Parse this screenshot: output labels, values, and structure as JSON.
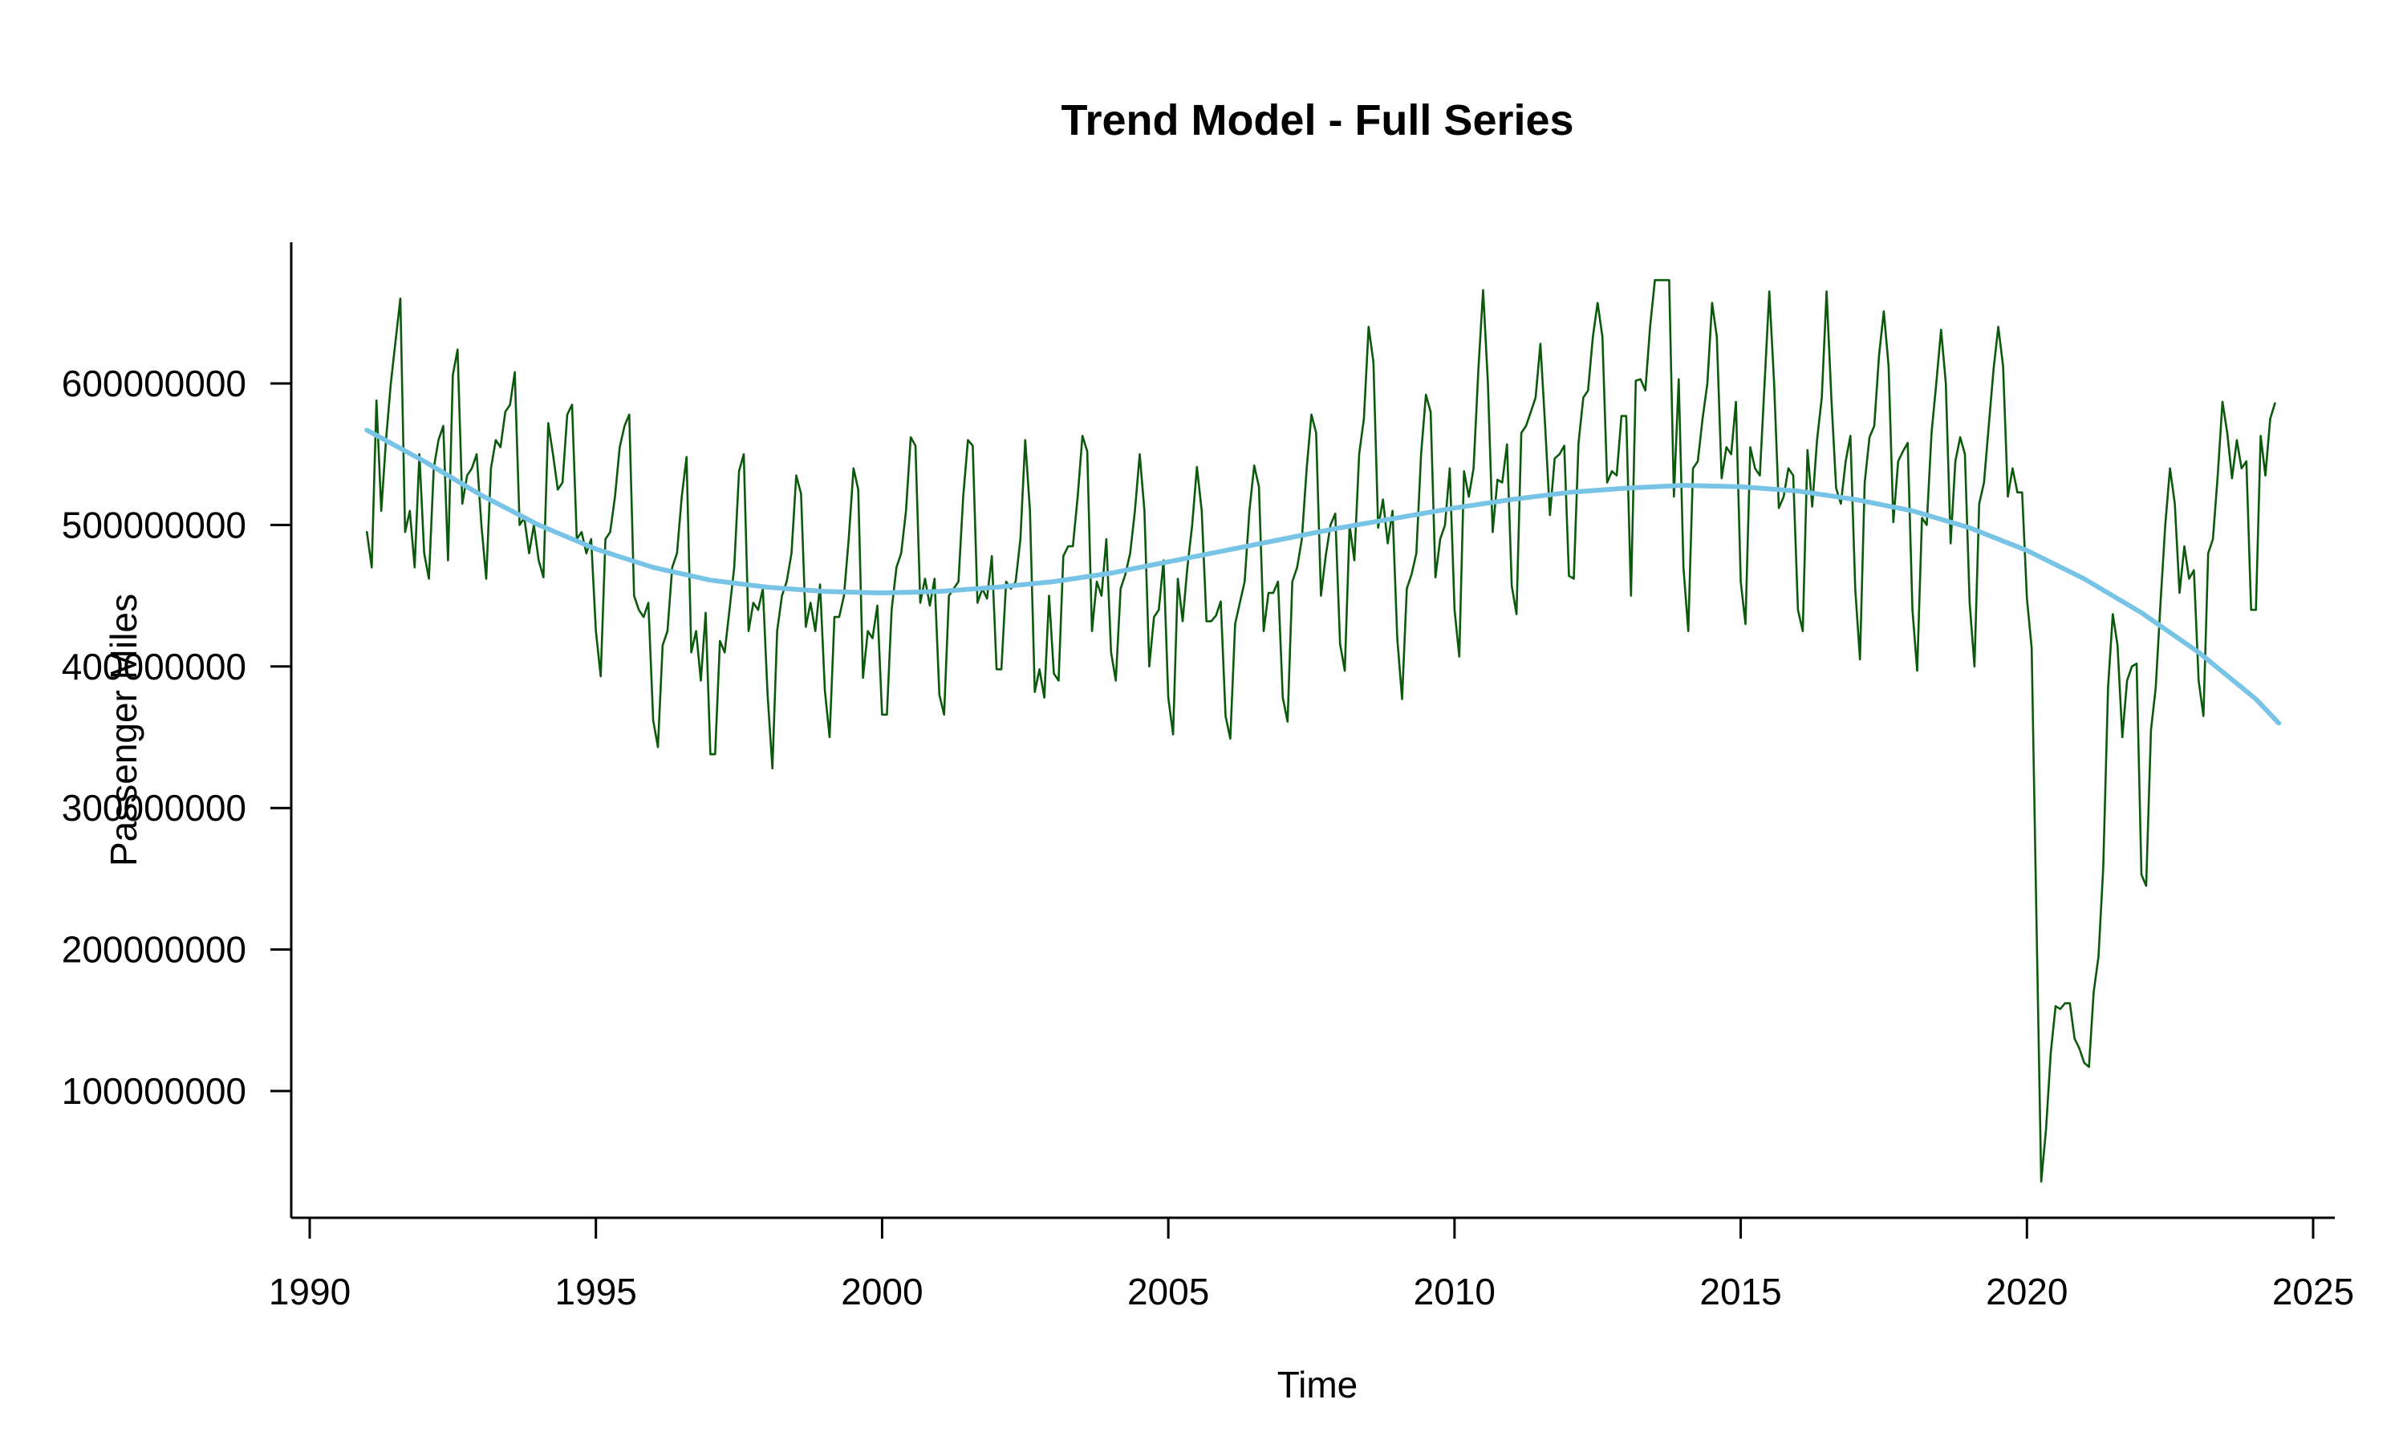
{
  "chart_data": {
    "type": "line",
    "title": "Trend Model - Full Series",
    "xlabel": "Time",
    "ylabel": "Passenger Miles",
    "xlim": [
      1990,
      2025
    ],
    "ylim": [
      35000000,
      675000000
    ],
    "x_ticks": [
      1990,
      1995,
      2000,
      2005,
      2010,
      2015,
      2020,
      2025
    ],
    "y_ticks": [
      100000000,
      200000000,
      300000000,
      400000000,
      500000000,
      600000000
    ],
    "grid": false,
    "legend": "none",
    "series": [
      {
        "role": "observed",
        "color": "#0b5a0b",
        "x_start": 1991.0,
        "x_step": 0.0833333,
        "values": [
          495000000,
          470000000,
          588000000,
          510000000,
          560000000,
          600000000,
          630000000,
          660000000,
          495000000,
          510000000,
          470000000,
          550000000,
          480000000,
          462000000,
          540000000,
          560000000,
          570000000,
          475000000,
          606000000,
          624000000,
          515000000,
          535000000,
          540000000,
          550000000,
          500000000,
          462000000,
          540000000,
          560000000,
          555000000,
          580000000,
          585000000,
          608000000,
          500000000,
          505000000,
          480000000,
          500000000,
          475000000,
          463000000,
          572000000,
          550000000,
          525000000,
          530000000,
          578000000,
          585000000,
          490000000,
          495000000,
          480000000,
          490000000,
          425000000,
          393000000,
          490000000,
          495000000,
          520000000,
          555000000,
          570000000,
          578000000,
          450000000,
          440000000,
          435000000,
          445000000,
          362000000,
          343000000,
          415000000,
          425000000,
          470000000,
          480000000,
          520000000,
          548000000,
          410000000,
          425000000,
          390000000,
          438000000,
          338000000,
          338000000,
          418000000,
          410000000,
          440000000,
          470000000,
          538000000,
          550000000,
          425000000,
          445000000,
          440000000,
          455000000,
          380000000,
          328000000,
          425000000,
          450000000,
          460000000,
          480000000,
          535000000,
          522000000,
          428000000,
          445000000,
          425000000,
          458000000,
          383000000,
          350000000,
          435000000,
          435000000,
          450000000,
          490000000,
          540000000,
          525000000,
          392000000,
          425000000,
          420000000,
          443000000,
          366000000,
          366000000,
          440000000,
          470000000,
          480000000,
          510000000,
          562000000,
          556000000,
          445000000,
          462000000,
          443000000,
          462000000,
          380000000,
          366000000,
          450000000,
          455000000,
          460000000,
          520000000,
          560000000,
          556000000,
          445000000,
          455000000,
          448000000,
          478000000,
          398000000,
          398000000,
          460000000,
          455000000,
          460000000,
          490000000,
          560000000,
          510000000,
          382000000,
          398000000,
          378000000,
          450000000,
          395000000,
          390000000,
          478000000,
          485000000,
          485000000,
          520000000,
          563000000,
          552000000,
          425000000,
          460000000,
          450000000,
          490000000,
          410000000,
          390000000,
          455000000,
          465000000,
          480000000,
          510000000,
          550000000,
          510000000,
          400000000,
          435000000,
          440000000,
          475000000,
          378000000,
          352000000,
          462000000,
          432000000,
          470000000,
          500000000,
          541000000,
          510000000,
          432000000,
          432000000,
          436000000,
          446000000,
          365000000,
          349000000,
          430000000,
          445000000,
          460000000,
          510000000,
          542000000,
          527000000,
          425000000,
          452000000,
          452000000,
          460000000,
          378000000,
          361000000,
          460000000,
          470000000,
          490000000,
          540000000,
          578000000,
          565000000,
          450000000,
          478000000,
          500000000,
          508000000,
          416000000,
          397000000,
          500000000,
          475000000,
          550000000,
          575000000,
          640000000,
          615000000,
          498000000,
          518000000,
          487000000,
          510000000,
          420000000,
          377000000,
          455000000,
          465000000,
          480000000,
          550000000,
          592000000,
          580000000,
          463000000,
          490000000,
          500000000,
          540000000,
          440000000,
          407000000,
          538000000,
          520000000,
          540000000,
          610000000,
          666000000,
          600000000,
          495000000,
          532000000,
          530000000,
          557000000,
          457000000,
          437000000,
          565000000,
          570000000,
          580000000,
          590000000,
          628000000,
          570000000,
          507000000,
          547000000,
          550000000,
          556000000,
          464000000,
          462000000,
          558000000,
          590000000,
          595000000,
          633000000,
          657000000,
          633000000,
          530000000,
          538000000,
          535000000,
          577000000,
          577000000,
          450000000,
          602000000,
          603000000,
          595000000,
          640000000,
          673000000,
          673000000,
          673000000,
          673000000,
          520000000,
          603000000,
          470000000,
          425000000,
          540000000,
          545000000,
          575000000,
          600000000,
          657000000,
          633000000,
          533000000,
          555000000,
          550000000,
          587000000,
          460000000,
          430000000,
          555000000,
          540000000,
          535000000,
          600000000,
          665000000,
          600000000,
          512000000,
          520000000,
          540000000,
          535000000,
          440000000,
          425000000,
          553000000,
          513000000,
          560000000,
          590000000,
          665000000,
          590000000,
          526000000,
          515000000,
          545000000,
          563000000,
          455000000,
          405000000,
          530000000,
          562000000,
          570000000,
          620000000,
          651000000,
          612000000,
          502000000,
          545000000,
          552000000,
          558000000,
          440000000,
          397000000,
          505000000,
          500000000,
          565000000,
          600000000,
          638000000,
          600000000,
          487000000,
          545000000,
          562000000,
          550000000,
          445000000,
          400000000,
          515000000,
          530000000,
          570000000,
          610000000,
          640000000,
          612000000,
          520000000,
          540000000,
          523000000,
          523000000,
          448000000,
          413000000,
          220000000,
          36000000,
          73000000,
          127000000,
          160000000,
          158000000,
          162000000,
          162000000,
          137000000,
          130000000,
          120000000,
          117000000,
          170000000,
          195000000,
          258000000,
          385000000,
          437000000,
          415000000,
          350000000,
          390000000,
          400000000,
          402000000,
          253000000,
          245000000,
          355000000,
          385000000,
          445000000,
          500000000,
          540000000,
          515000000,
          452000000,
          485000000,
          462000000,
          468000000,
          390000000,
          365000000,
          480000000,
          490000000,
          535000000,
          587000000,
          565000000,
          533000000,
          560000000,
          540000000,
          545000000,
          440000000,
          440000000,
          563000000,
          535000000,
          575000000,
          586000000
        ]
      },
      {
        "role": "trend",
        "color": "#78c4e6",
        "x": [
          1991.0,
          1992.0,
          1993.0,
          1994.0,
          1995.0,
          1996.0,
          1997.0,
          1998.0,
          1999.0,
          2000.0,
          2001.0,
          2002.0,
          2003.0,
          2004.0,
          2005.0,
          2006.0,
          2007.0,
          2008.0,
          2009.0,
          2010.0,
          2011.0,
          2012.0,
          2013.0,
          2014.0,
          2015.0,
          2016.0,
          2017.0,
          2018.0,
          2019.0,
          2020.0,
          2021.0,
          2022.0,
          2023.0,
          2024.0,
          2024.4
        ],
        "values": [
          567000000,
          545000000,
          521000000,
          500000000,
          483000000,
          470000000,
          461000000,
          456000000,
          453000000,
          452000000,
          453000000,
          456000000,
          460000000,
          466000000,
          474000000,
          482000000,
          490000000,
          498000000,
          505000000,
          512000000,
          518000000,
          523000000,
          526000000,
          528000000,
          527000000,
          524000000,
          518000000,
          510000000,
          498000000,
          482000000,
          462000000,
          438000000,
          410000000,
          377000000,
          360000000
        ]
      }
    ]
  }
}
